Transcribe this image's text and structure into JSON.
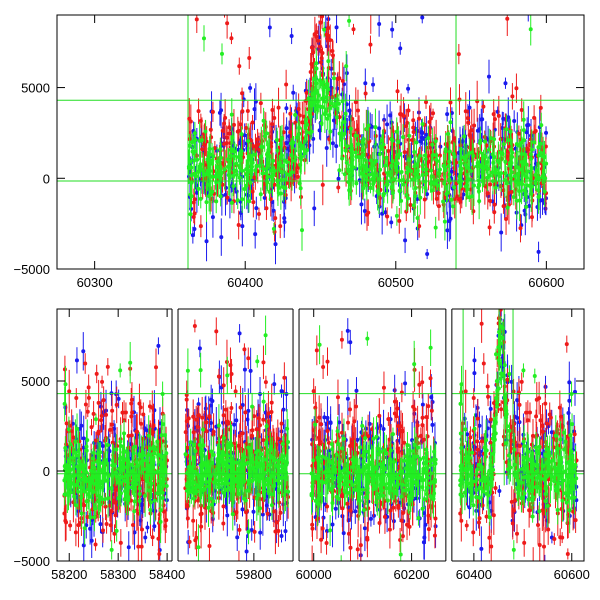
{
  "colors": {
    "series_blue": "#1a1aee",
    "series_red": "#ee1a1a",
    "series_green": "#22ee22",
    "reference_line": "#22dd22",
    "axis": "#000000",
    "background": "#ffffff"
  },
  "chart_data": [
    {
      "type": "scatter",
      "panel": "top",
      "xlim": [
        60275,
        60625
      ],
      "ylim": [
        -5000,
        9000
      ],
      "xticks": [
        60300,
        60400,
        60500,
        60600
      ],
      "yticks": [
        -5000,
        0,
        5000
      ],
      "xtick_labels": [
        "60300",
        "60400",
        "60500",
        "60600"
      ],
      "ytick_labels": [
        "−5000",
        "0",
        "5000"
      ],
      "reference_lines_y": [
        4300,
        -150
      ],
      "reference_lines_x": [
        60362,
        60540
      ],
      "series": [
        {
          "color": "blue",
          "x_range": [
            60362,
            60600
          ],
          "baseline": 800,
          "spread": 1800,
          "n": 380,
          "flare_center": 60452,
          "flare_peak": 5500
        },
        {
          "color": "red",
          "x_range": [
            60362,
            60600
          ],
          "baseline": 1000,
          "spread": 1500,
          "n": 520,
          "flare_center": 60452,
          "flare_peak": 6500
        },
        {
          "color": "green",
          "x_range": [
            60362,
            60600
          ],
          "baseline": 600,
          "spread": 1000,
          "n": 600,
          "flare_center": 60452,
          "flare_peak": 4600
        }
      ],
      "grid": false
    },
    {
      "type": "scatter",
      "panel": "bottom",
      "xlim": [
        58160,
        60630
      ],
      "ylim": [
        -5000,
        9000
      ],
      "xticks": [
        58200,
        58300,
        58400,
        59800,
        60000,
        60200,
        60400,
        60600
      ],
      "yticks": [
        -5000,
        0,
        5000
      ],
      "xtick_labels": [
        "58200",
        "58300",
        "58400",
        "59800",
        "60000",
        "60200",
        "60400",
        "60600"
      ],
      "ytick_labels": [
        "−5000",
        "0",
        "5000"
      ],
      "reference_lines_y": [
        4300,
        -150
      ],
      "segments": [
        {
          "x_range": [
            58175,
            58410
          ],
          "data_range": [
            58190,
            58400
          ]
        },
        {
          "x_range": [
            59645,
            59880
          ],
          "data_range": [
            59660,
            59870
          ]
        },
        {
          "x_range": [
            59970,
            60270
          ],
          "data_range": [
            59995,
            60250
          ]
        },
        {
          "x_range": [
            60355,
            60625
          ],
          "data_range": [
            60372,
            60610
          ],
          "flare_center": 60455,
          "flare_peak": 7000
        }
      ],
      "series": [
        {
          "color": "blue",
          "baseline": 200,
          "spread": 1800,
          "n_per_segment": 160
        },
        {
          "color": "red",
          "baseline": 300,
          "spread": 2200,
          "n_per_segment": 220
        },
        {
          "color": "green",
          "baseline": -100,
          "spread": 900,
          "n_per_segment": 280
        }
      ],
      "grid": false
    }
  ]
}
